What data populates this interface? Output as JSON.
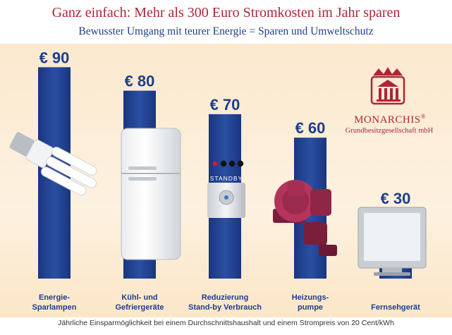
{
  "header": {
    "title": "Ganz einfach: Mehr als 300 Euro Stromkosten im Jahr sparen",
    "subtitle": "Bewusster Umgang mit teurer Energie = Sparen und Umweltschutz"
  },
  "logo": {
    "name": "MONARCHIS",
    "registered": "®",
    "subtitle": "Grundbesitzgesellschaft mbH"
  },
  "device_text": {
    "standby": "STANDBY"
  },
  "footer": "Jährliche Einsparmöglichkeit bei einem Durchschnittshaushalt und einem Strompreis von 20 Cent/kWh",
  "colors": {
    "bar": "#1e3e8c",
    "title": "#b0243a",
    "background": "#fbe9cf"
  },
  "chart_data": {
    "type": "bar",
    "categories": [
      [
        "Energie-",
        "Sparlampen"
      ],
      [
        "Kühl- und",
        "Gefriergeräte"
      ],
      [
        "Reduzierung",
        "Stand-by Verbrauch"
      ],
      [
        "Heizungs-",
        "pumpe"
      ],
      [
        "Fernsehgerät"
      ]
    ],
    "values": [
      90,
      80,
      70,
      60,
      30
    ],
    "value_labels": [
      "€ 90",
      "€ 80",
      "€ 70",
      "€ 60",
      "€ 30"
    ],
    "ylim": [
      0,
      100
    ],
    "grid": false,
    "legend": "none"
  }
}
